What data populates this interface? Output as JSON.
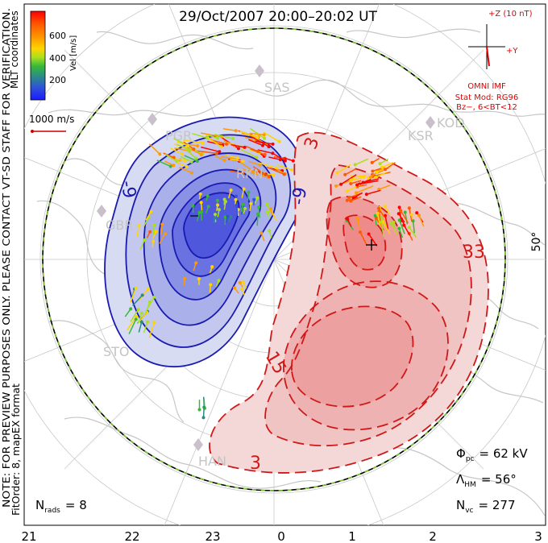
{
  "title": "29/Oct/2007  20:00–20:02 UT",
  "side_note_1": "NOTE: FOR PREVIEW PURPOSES ONLY. PLEASE CONTACT VT-SD STAFF FOR VERIFICATION.",
  "side_note_2": "FitOrder: 8, mapEX format",
  "colorbar": {
    "ticks": [
      "600",
      "400",
      "200"
    ],
    "label": "Vel [m/s]",
    "coord_label": "MLT coordinates",
    "colors": [
      "#ff0000",
      "#ff5a00",
      "#ff9a00",
      "#ffd400",
      "#a8e020",
      "#38b838",
      "#2a8a8a",
      "#2f52d8",
      "#1a1aff"
    ]
  },
  "ref_vector": "1000 m/s",
  "imf": {
    "axis_z": "+Z (10 nT)",
    "axis_y": "+Y",
    "source": "OMNI IMF",
    "stat_mod": "Stat Mod: RG96",
    "bz": "Bz−, 6<BT<12",
    "color": "#e00000"
  },
  "stations": [
    "SAS",
    "KSR",
    "KOD",
    "PGR",
    "RKN",
    "GBR",
    "STO",
    "HAN"
  ],
  "contour_labels_neg": [
    "-9",
    "-9"
  ],
  "contour_labels_pos": [
    "3",
    "15",
    "3",
    "33"
  ],
  "lat_label": "50°",
  "phi_pc": "Φ",
  "phi_sub": "pc",
  "phi_val": "= 62 kV",
  "lambda": "Λ",
  "lambda_sub": "HM",
  "lambda_val": "= 56°",
  "nvc": "N",
  "nvc_sub": "vc",
  "nvc_val": "= 277",
  "nrads": "N",
  "nrads_sub": "rads",
  "nrads_val": "= 8",
  "mlt_ticks": [
    "21",
    "22",
    "23",
    "0",
    "1",
    "2",
    "3"
  ],
  "colors": {
    "neg": "#1a1ab0",
    "pos": "#d01818",
    "hmb": "#7ec832"
  }
}
